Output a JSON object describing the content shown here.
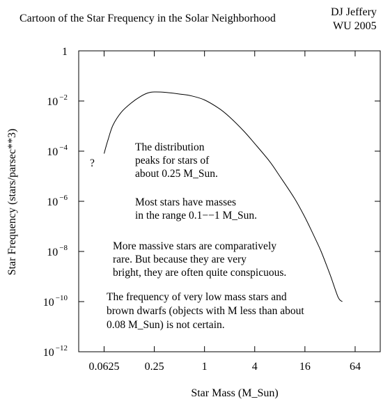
{
  "chart_data": {
    "type": "line",
    "title": "Cartoon of the Star Frequency in the Solar Neighborhood",
    "author": [
      "DJ Jeffery",
      "WU 2005"
    ],
    "xlabel": "Star Mass (M_Sun)",
    "ylabel": "Star Frequency (stars/parsec**3)",
    "x_scale": "log2",
    "y_scale": "log10",
    "xlim": [
      0.031,
      128
    ],
    "ylim": [
      1e-12,
      1
    ],
    "x_ticks": [
      {
        "value": 0.0625,
        "label": "0.0625"
      },
      {
        "value": 0.25,
        "label": "0.25"
      },
      {
        "value": 1,
        "label": "1"
      },
      {
        "value": 4,
        "label": "4"
      },
      {
        "value": 16,
        "label": "16"
      },
      {
        "value": 64,
        "label": "64"
      }
    ],
    "y_ticks": [
      {
        "value": 1,
        "base": "1",
        "exp": ""
      },
      {
        "value": 0.01,
        "base": "10",
        "exp": "−2"
      },
      {
        "value": 0.0001,
        "base": "10",
        "exp": "−4"
      },
      {
        "value": 1e-06,
        "base": "10",
        "exp": "−6"
      },
      {
        "value": 1e-08,
        "base": "10",
        "exp": "−8"
      },
      {
        "value": 1e-10,
        "base": "10",
        "exp": "−10"
      },
      {
        "value": 1e-12,
        "base": "10",
        "exp": "−12"
      }
    ],
    "series": [
      {
        "points": [
          [
            0.0625,
            8e-05
          ],
          [
            0.07,
            0.0003
          ],
          [
            0.08,
            0.0011
          ],
          [
            0.1,
            0.0035
          ],
          [
            0.13,
            0.008
          ],
          [
            0.17,
            0.015
          ],
          [
            0.21,
            0.021
          ],
          [
            0.25,
            0.023
          ],
          [
            0.35,
            0.022
          ],
          [
            0.5,
            0.019
          ],
          [
            0.7,
            0.016
          ],
          [
            1.0,
            0.011
          ],
          [
            1.5,
            0.005
          ],
          [
            2,
            0.0023
          ],
          [
            3,
            0.0006
          ],
          [
            4,
            0.0002
          ],
          [
            6,
            4e-05
          ],
          [
            8,
            1e-05
          ],
          [
            12,
            1.3e-06
          ],
          [
            16,
            2.3e-07
          ],
          [
            20,
            5e-08
          ],
          [
            25,
            1e-08
          ],
          [
            32,
            1.2e-09
          ],
          [
            40,
            1.5e-10
          ],
          [
            45,
            1e-10
          ]
        ]
      }
    ],
    "annotations": [
      {
        "id": "question",
        "lines": [
          "?"
        ]
      },
      {
        "id": "peak",
        "lines": [
          "The distribution",
          "peaks for stars of",
          "about 0.25 M_Sun."
        ]
      },
      {
        "id": "range",
        "lines": [
          "Most stars have masses",
          "in the range 0.1−−1 M_Sun."
        ]
      },
      {
        "id": "massive",
        "lines": [
          "More massive stars are comparatively",
          "rare.  But because they are very",
          "bright, they are often quite conspicuous."
        ]
      },
      {
        "id": "lowmass",
        "lines": [
          "The frequency of very low mass stars and",
          "brown dwarfs (objects with M less than about",
          "0.08 M_Sun) is not certain."
        ]
      }
    ]
  }
}
